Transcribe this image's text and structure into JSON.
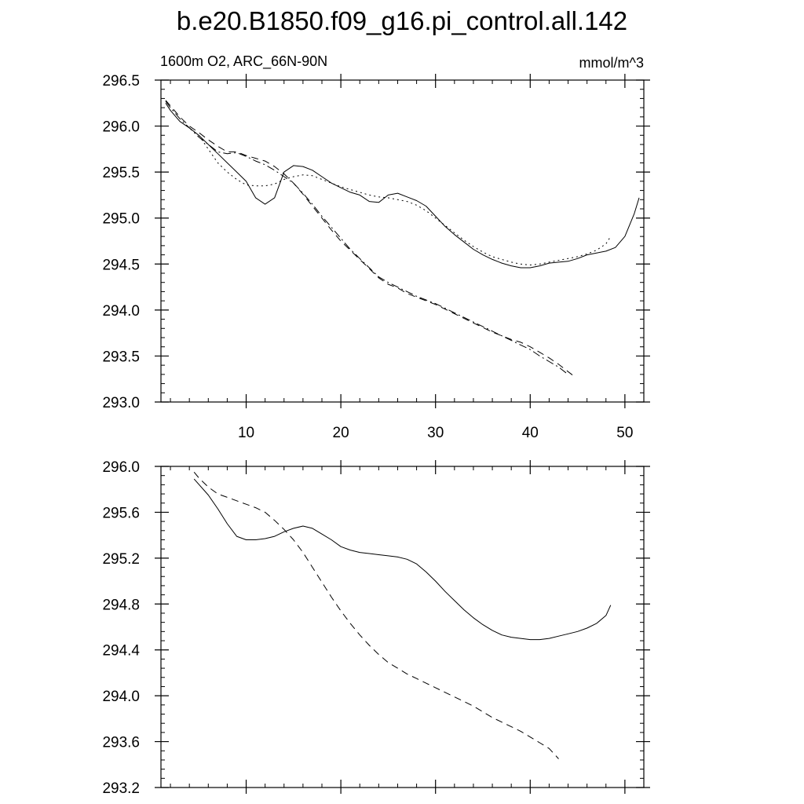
{
  "chart_data": [
    {
      "type": "line",
      "title": "b.e20.B1850.f09_g16.pi_control.all.142",
      "subtitle_left": "1600m O2, ARC_66N-90N",
      "subtitle_right": "mmol/m^3",
      "xlabel": "",
      "ylabel": "",
      "xlim": [
        1,
        52
      ],
      "ylim": [
        293.0,
        296.5
      ],
      "x_ticks": [
        10,
        20,
        30,
        40,
        50
      ],
      "x_tick_labels": [
        "10",
        "20",
        "30",
        "40",
        "50"
      ],
      "y_ticks": [
        293.0,
        293.5,
        294.0,
        294.5,
        295.0,
        295.5,
        296.0,
        296.5
      ],
      "y_tick_labels": [
        "293.0",
        "293.5",
        "294.0",
        "294.5",
        "295.0",
        "295.5",
        "296.0",
        "296.5"
      ],
      "grid": false,
      "series": [
        {
          "name": "solid",
          "style": "solid",
          "x": [
            1.5,
            2,
            3,
            4,
            5,
            6,
            7,
            8,
            9,
            10,
            11,
            12,
            13,
            14,
            15,
            16,
            17,
            18,
            19,
            20,
            21,
            22,
            23,
            24,
            25,
            26,
            27,
            28,
            29,
            30,
            31,
            32,
            33,
            34,
            35,
            36,
            37,
            38,
            39,
            40,
            41,
            42,
            43,
            44,
            45,
            46,
            47,
            48,
            49,
            50,
            51,
            51.5
          ],
          "y": [
            296.25,
            296.17,
            296.05,
            295.98,
            295.9,
            295.8,
            295.7,
            295.6,
            295.5,
            295.4,
            295.22,
            295.15,
            295.22,
            295.5,
            295.57,
            295.56,
            295.52,
            295.45,
            295.38,
            295.33,
            295.28,
            295.25,
            295.18,
            295.17,
            295.25,
            295.27,
            295.23,
            295.19,
            295.13,
            295.02,
            294.91,
            294.82,
            294.74,
            294.66,
            294.6,
            294.55,
            294.51,
            294.48,
            294.46,
            294.46,
            294.48,
            294.51,
            294.52,
            294.53,
            294.56,
            294.6,
            294.62,
            294.64,
            294.68,
            294.8,
            295.05,
            295.22
          ]
        },
        {
          "name": "dashed",
          "style": "dashed",
          "x": [
            1.5,
            2,
            3,
            4,
            5,
            6,
            7,
            8,
            9,
            10,
            11,
            12,
            13,
            14,
            15,
            16,
            17,
            18,
            19,
            20,
            21,
            22,
            23,
            24,
            25,
            26,
            27,
            28,
            29,
            30,
            31,
            32,
            33,
            34,
            35,
            36,
            37,
            38,
            39,
            40,
            41,
            42,
            43,
            44,
            44.5
          ],
          "y": [
            296.28,
            296.22,
            296.1,
            296.0,
            295.93,
            295.85,
            295.78,
            295.72,
            295.72,
            295.68,
            295.65,
            295.62,
            295.56,
            295.48,
            295.38,
            295.26,
            295.13,
            295.0,
            294.87,
            294.75,
            294.65,
            294.55,
            294.45,
            294.35,
            294.28,
            294.24,
            294.18,
            294.14,
            294.1,
            294.06,
            294.01,
            293.96,
            293.91,
            293.86,
            293.81,
            293.76,
            293.72,
            293.68,
            293.65,
            293.6,
            293.54,
            293.48,
            293.41,
            293.33,
            293.29
          ]
        },
        {
          "name": "dash-dot",
          "style": "dashdot",
          "x": [
            1.5,
            2,
            3,
            4,
            5,
            6,
            7,
            8,
            9,
            10,
            11,
            12,
            13,
            14,
            15,
            16,
            17,
            18,
            19,
            20,
            21,
            22,
            23,
            24,
            25,
            26,
            27,
            28,
            29,
            30,
            31,
            32,
            33,
            34,
            35,
            36,
            37,
            38,
            39,
            40,
            41,
            42,
            43,
            44
          ],
          "y": [
            296.27,
            296.2,
            296.08,
            295.98,
            295.88,
            295.8,
            295.72,
            295.7,
            295.71,
            295.67,
            295.62,
            295.58,
            295.52,
            295.45,
            295.38,
            295.27,
            295.15,
            295.02,
            294.9,
            294.78,
            294.66,
            294.56,
            294.46,
            294.36,
            294.3,
            294.25,
            294.2,
            294.15,
            294.11,
            294.07,
            294.02,
            293.97,
            293.92,
            293.87,
            293.82,
            293.77,
            293.72,
            293.67,
            293.62,
            293.57,
            293.5,
            293.44,
            293.38,
            293.3
          ]
        },
        {
          "name": "dotted",
          "style": "dotted",
          "x": [
            5,
            6,
            7,
            8,
            9,
            10,
            11,
            12,
            13,
            14,
            15,
            16,
            17,
            18,
            19,
            20,
            21,
            22,
            23,
            24,
            25,
            26,
            27,
            28,
            29,
            30,
            31,
            32,
            33,
            34,
            35,
            36,
            37,
            38,
            39,
            40,
            41,
            42,
            43,
            44,
            45,
            46,
            47,
            48,
            48.5
          ],
          "y": [
            295.9,
            295.75,
            295.6,
            295.5,
            295.42,
            295.36,
            295.35,
            295.35,
            295.37,
            295.42,
            295.45,
            295.47,
            295.46,
            295.42,
            295.38,
            295.34,
            295.31,
            295.28,
            295.25,
            295.23,
            295.22,
            295.2,
            295.18,
            295.14,
            295.08,
            295.0,
            294.92,
            294.84,
            294.76,
            294.69,
            294.63,
            294.58,
            294.55,
            294.52,
            294.5,
            294.49,
            294.5,
            294.52,
            294.54,
            294.56,
            294.58,
            294.61,
            294.65,
            294.72,
            294.8
          ]
        }
      ]
    },
    {
      "type": "line",
      "title": "",
      "xlabel": "",
      "ylabel": "",
      "xlim": [
        1,
        52
      ],
      "ylim": [
        293.2,
        296.0
      ],
      "x_ticks": [
        10,
        20,
        30,
        40,
        50
      ],
      "x_tick_labels": [],
      "y_ticks": [
        293.2,
        293.6,
        294.0,
        294.4,
        294.8,
        295.2,
        295.6,
        296.0
      ],
      "y_tick_labels": [
        "293.2",
        "293.6",
        "294.0",
        "294.4",
        "294.8",
        "295.2",
        "295.6",
        "296.0"
      ],
      "grid": false,
      "series": [
        {
          "name": "solid",
          "style": "solid",
          "x": [
            4.5,
            6,
            7,
            8,
            9,
            10,
            11,
            12,
            13,
            14,
            15,
            16,
            17,
            18,
            19,
            20,
            21,
            22,
            23,
            24,
            25,
            26,
            27,
            28,
            29,
            30,
            31,
            32,
            33,
            34,
            35,
            36,
            37,
            38,
            39,
            40,
            41,
            42,
            43,
            44,
            45,
            46,
            47,
            48,
            48.5
          ],
          "y": [
            295.89,
            295.75,
            295.63,
            295.5,
            295.39,
            295.36,
            295.36,
            295.37,
            295.39,
            295.43,
            295.46,
            295.48,
            295.46,
            295.41,
            295.36,
            295.3,
            295.27,
            295.25,
            295.24,
            295.23,
            295.22,
            295.21,
            295.19,
            295.15,
            295.08,
            295.0,
            294.91,
            294.83,
            294.75,
            294.68,
            294.62,
            294.57,
            294.53,
            294.51,
            294.5,
            294.49,
            294.49,
            294.5,
            294.52,
            294.54,
            294.56,
            294.59,
            294.63,
            294.7,
            294.79
          ]
        },
        {
          "name": "dashed",
          "style": "dashed",
          "x": [
            4.5,
            5,
            6,
            7,
            8,
            9,
            10,
            11,
            12,
            13,
            14,
            15,
            16,
            17,
            18,
            19,
            20,
            21,
            22,
            23,
            24,
            25,
            26,
            27,
            28,
            29,
            30,
            31,
            32,
            33,
            34,
            35,
            36,
            37,
            38,
            39,
            40,
            41,
            42,
            43
          ],
          "y": [
            295.95,
            295.9,
            295.82,
            295.76,
            295.73,
            295.7,
            295.67,
            295.64,
            295.6,
            295.53,
            295.45,
            295.36,
            295.25,
            295.12,
            294.99,
            294.86,
            294.74,
            294.63,
            294.53,
            294.44,
            294.36,
            294.29,
            294.24,
            294.19,
            294.15,
            294.11,
            294.07,
            294.03,
            293.99,
            293.95,
            293.91,
            293.86,
            293.81,
            293.77,
            293.73,
            293.69,
            293.64,
            293.59,
            293.54,
            293.45
          ]
        }
      ]
    }
  ]
}
